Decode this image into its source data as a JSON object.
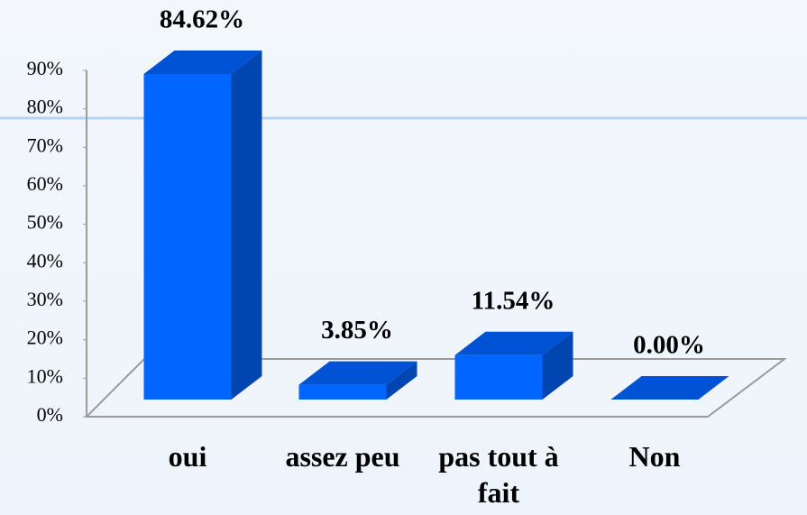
{
  "chart_data": {
    "type": "bar3d",
    "categories": [
      "oui",
      "assez peu",
      "pas tout à fait",
      "Non"
    ],
    "values": [
      84.62,
      3.85,
      11.54,
      0
    ],
    "value_labels": [
      "84.62%",
      "3.85%",
      "11.54%",
      "0.00%"
    ],
    "color": "#0066ff",
    "ylim": [
      0,
      90
    ],
    "yticks": [
      {
        "value": 0,
        "label": "0%"
      },
      {
        "value": 10,
        "label": "10%"
      },
      {
        "value": 20,
        "label": "20%"
      },
      {
        "value": 30,
        "label": "30%"
      },
      {
        "value": 40,
        "label": "40%"
      },
      {
        "value": 50,
        "label": "50%"
      },
      {
        "value": 60,
        "label": "60%"
      },
      {
        "value": 70,
        "label": "70%"
      },
      {
        "value": 80,
        "label": "80%"
      },
      {
        "value": 90,
        "label": "90%"
      }
    ]
  }
}
